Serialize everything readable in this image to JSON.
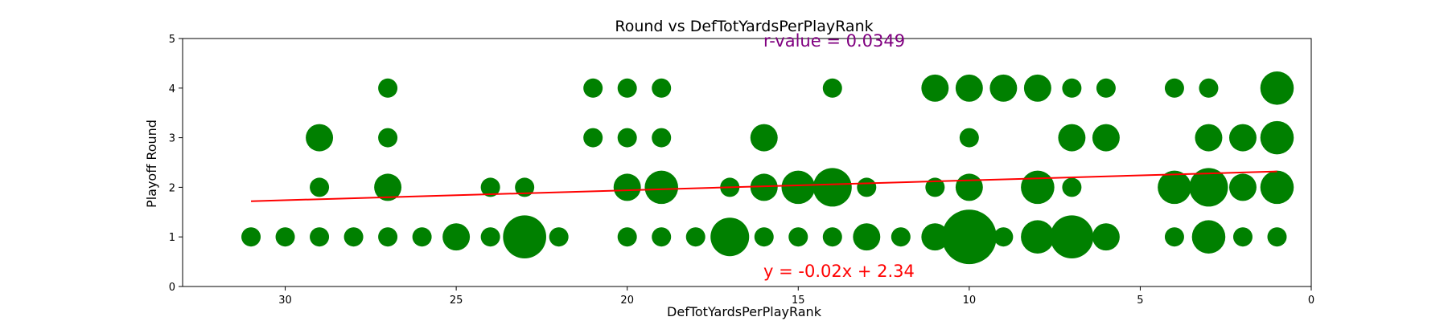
{
  "chart_data": {
    "type": "scatter",
    "title": "Round vs DefTotYardsPerPlayRank",
    "xlabel": "DefTotYardsPerPlayRank",
    "ylabel": "Playoff Round",
    "xlim": [
      33,
      0
    ],
    "ylim": [
      0,
      5
    ],
    "x_ticks": [
      30,
      25,
      20,
      15,
      10,
      5,
      0
    ],
    "y_ticks": [
      0,
      1,
      2,
      3,
      4,
      5
    ],
    "grid": false,
    "point_color": "#008000",
    "line_color": "#ff0000",
    "r_color": "#800080",
    "points": [
      {
        "x": 31,
        "y": 1,
        "count": 1
      },
      {
        "x": 30,
        "y": 1,
        "count": 1
      },
      {
        "x": 29,
        "y": 1,
        "count": 1
      },
      {
        "x": 28,
        "y": 1,
        "count": 1
      },
      {
        "x": 27,
        "y": 1,
        "count": 1
      },
      {
        "x": 26,
        "y": 1,
        "count": 1
      },
      {
        "x": 25,
        "y": 1,
        "count": 2
      },
      {
        "x": 24,
        "y": 1,
        "count": 1
      },
      {
        "x": 23,
        "y": 1,
        "count": 5
      },
      {
        "x": 22,
        "y": 1,
        "count": 1
      },
      {
        "x": 20,
        "y": 1,
        "count": 1
      },
      {
        "x": 19,
        "y": 1,
        "count": 1
      },
      {
        "x": 18,
        "y": 1,
        "count": 1
      },
      {
        "x": 17,
        "y": 1,
        "count": 4
      },
      {
        "x": 16,
        "y": 1,
        "count": 1
      },
      {
        "x": 15,
        "y": 1,
        "count": 1
      },
      {
        "x": 14,
        "y": 1,
        "count": 1
      },
      {
        "x": 13,
        "y": 1,
        "count": 2
      },
      {
        "x": 12,
        "y": 1,
        "count": 1
      },
      {
        "x": 11,
        "y": 1,
        "count": 2
      },
      {
        "x": 10,
        "y": 1,
        "count": 8
      },
      {
        "x": 9,
        "y": 1,
        "count": 1
      },
      {
        "x": 8,
        "y": 1,
        "count": 3
      },
      {
        "x": 7,
        "y": 1,
        "count": 5
      },
      {
        "x": 6,
        "y": 1,
        "count": 2
      },
      {
        "x": 4,
        "y": 1,
        "count": 1
      },
      {
        "x": 3,
        "y": 1,
        "count": 3
      },
      {
        "x": 2,
        "y": 1,
        "count": 1
      },
      {
        "x": 1,
        "y": 1,
        "count": 1
      },
      {
        "x": 29,
        "y": 2,
        "count": 1
      },
      {
        "x": 27,
        "y": 2,
        "count": 2
      },
      {
        "x": 24,
        "y": 2,
        "count": 1
      },
      {
        "x": 23,
        "y": 2,
        "count": 1
      },
      {
        "x": 20,
        "y": 2,
        "count": 2
      },
      {
        "x": 19,
        "y": 2,
        "count": 3
      },
      {
        "x": 17,
        "y": 2,
        "count": 1
      },
      {
        "x": 16,
        "y": 2,
        "count": 2
      },
      {
        "x": 15,
        "y": 2,
        "count": 3
      },
      {
        "x": 14,
        "y": 2,
        "count": 4
      },
      {
        "x": 13,
        "y": 2,
        "count": 1
      },
      {
        "x": 11,
        "y": 2,
        "count": 1
      },
      {
        "x": 10,
        "y": 2,
        "count": 2
      },
      {
        "x": 8,
        "y": 2,
        "count": 3
      },
      {
        "x": 7,
        "y": 2,
        "count": 1
      },
      {
        "x": 4,
        "y": 2,
        "count": 3
      },
      {
        "x": 3,
        "y": 2,
        "count": 4
      },
      {
        "x": 2,
        "y": 2,
        "count": 2
      },
      {
        "x": 1,
        "y": 2,
        "count": 3
      },
      {
        "x": 29,
        "y": 3,
        "count": 2
      },
      {
        "x": 27,
        "y": 3,
        "count": 1
      },
      {
        "x": 21,
        "y": 3,
        "count": 1
      },
      {
        "x": 20,
        "y": 3,
        "count": 1
      },
      {
        "x": 19,
        "y": 3,
        "count": 1
      },
      {
        "x": 16,
        "y": 3,
        "count": 2
      },
      {
        "x": 10,
        "y": 3,
        "count": 1
      },
      {
        "x": 7,
        "y": 3,
        "count": 2
      },
      {
        "x": 6,
        "y": 3,
        "count": 2
      },
      {
        "x": 3,
        "y": 3,
        "count": 2
      },
      {
        "x": 2,
        "y": 3,
        "count": 2
      },
      {
        "x": 1,
        "y": 3,
        "count": 3
      },
      {
        "x": 27,
        "y": 4,
        "count": 1
      },
      {
        "x": 21,
        "y": 4,
        "count": 1
      },
      {
        "x": 20,
        "y": 4,
        "count": 1
      },
      {
        "x": 19,
        "y": 4,
        "count": 1
      },
      {
        "x": 14,
        "y": 4,
        "count": 1
      },
      {
        "x": 11,
        "y": 4,
        "count": 2
      },
      {
        "x": 10,
        "y": 4,
        "count": 2
      },
      {
        "x": 9,
        "y": 4,
        "count": 2
      },
      {
        "x": 8,
        "y": 4,
        "count": 2
      },
      {
        "x": 7,
        "y": 4,
        "count": 1
      },
      {
        "x": 6,
        "y": 4,
        "count": 1
      },
      {
        "x": 4,
        "y": 4,
        "count": 1
      },
      {
        "x": 3,
        "y": 4,
        "count": 1
      },
      {
        "x": 1,
        "y": 4,
        "count": 3
      }
    ],
    "trendline": {
      "slope": -0.02,
      "intercept": 2.34,
      "x_range": [
        31,
        1
      ]
    },
    "annotations": {
      "equation": "y = -0.02x + 2.34",
      "r_value": "r-value = 0.0349"
    }
  }
}
